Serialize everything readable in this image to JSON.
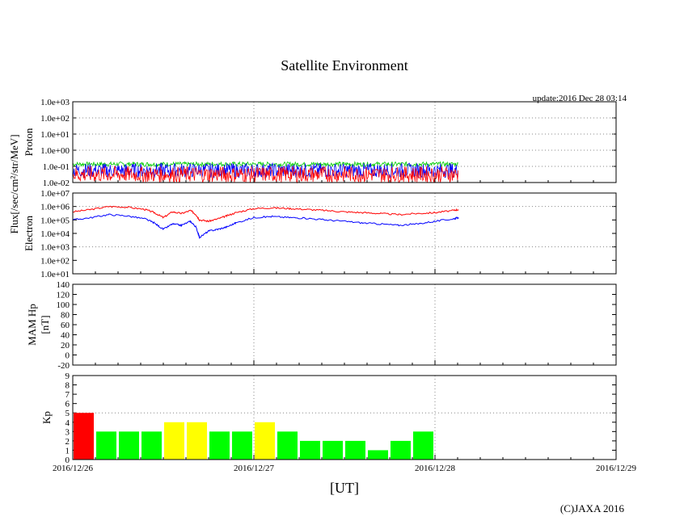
{
  "title": "Satellite Environment",
  "update_text": "update:2016 Dec 28 03:14",
  "flux_axis_label": "Flux[/sec/cm²/str/MeV]",
  "x_axis_label": "[UT]",
  "copyright": "(C)JAXA 2016",
  "colors": {
    "red": "#ff0000",
    "blue": "#0000ff",
    "green": "#00cc00",
    "kp_red": "#ff0000",
    "kp_yellow": "#ffff00",
    "kp_green": "#00ff00",
    "grid": "#888888"
  },
  "chart_data": [
    {
      "type": "line",
      "panel": "proton",
      "ylabel": "Proton",
      "yscale": "log",
      "ylim": [
        0.01,
        1000
      ],
      "ytick_labels": [
        "1.0e-02",
        "1.0e-01",
        "1.0e+00",
        "1.0e+01",
        "1.0e+02",
        "1.0e+03"
      ],
      "xlim": [
        0,
        3
      ],
      "x_tick_labels": [
        "2016/12/26",
        "2016/12/27",
        "2016/12/28",
        "2016/12/29"
      ],
      "data_end_day": 2.13,
      "series": [
        {
          "name": "green",
          "color": "green",
          "approx_level": 0.15,
          "noise_range": [
            0.1,
            0.19
          ]
        },
        {
          "name": "blue",
          "color": "blue",
          "approx_level": 0.1,
          "noise_range": [
            0.02,
            0.16
          ]
        },
        {
          "name": "red",
          "color": "red",
          "approx_level": 0.06,
          "noise_range": [
            0.01,
            0.1
          ]
        }
      ]
    },
    {
      "type": "line",
      "panel": "electron",
      "ylabel": "Electron",
      "yscale": "log",
      "ylim": [
        10,
        10000000
      ],
      "ytick_labels": [
        "1.0e+01",
        "1.0e+02",
        "1.0e+03",
        "1.0e+04",
        "1.0e+05",
        "1.0e+06",
        "1.0e+07"
      ],
      "x_days": [
        0,
        0.1,
        0.2,
        0.3,
        0.4,
        0.45,
        0.5,
        0.55,
        0.6,
        0.65,
        0.68,
        0.7,
        0.75,
        0.8,
        0.85,
        0.9,
        1.0,
        1.1,
        1.2,
        1.3,
        1.4,
        1.5,
        1.6,
        1.7,
        1.8,
        1.9,
        2.0,
        2.1,
        2.13
      ],
      "series": [
        {
          "name": "red",
          "color": "red",
          "values": [
            400000,
            600000,
            1000000,
            900000,
            600000,
            350000,
            150000,
            400000,
            300000,
            500000,
            250000,
            100000,
            80000,
            120000,
            200000,
            350000,
            700000,
            800000,
            700000,
            600000,
            500000,
            400000,
            350000,
            300000,
            250000,
            300000,
            350000,
            500000,
            600000
          ]
        },
        {
          "name": "blue",
          "color": "blue",
          "values": [
            100000,
            150000,
            250000,
            200000,
            120000,
            60000,
            20000,
            50000,
            40000,
            80000,
            30000,
            5000,
            15000,
            20000,
            30000,
            60000,
            150000,
            180000,
            150000,
            130000,
            100000,
            80000,
            60000,
            50000,
            40000,
            50000,
            80000,
            120000,
            150000
          ]
        }
      ]
    },
    {
      "type": "line",
      "panel": "mam_hp",
      "ylabel": "MAM Hp [nT]",
      "ylim": [
        -20,
        140
      ],
      "ytick_labels": [
        "-20",
        "0",
        "20",
        "40",
        "60",
        "80",
        "100",
        "120",
        "140"
      ],
      "series": []
    },
    {
      "type": "bar",
      "panel": "kp",
      "ylabel": "Kp",
      "ylim": [
        0,
        9
      ],
      "ytick_labels": [
        "0",
        "1",
        "2",
        "3",
        "4",
        "5",
        "6",
        "7",
        "8",
        "9"
      ],
      "threshold": 5,
      "bar_width_days": 0.125,
      "values": [
        5,
        3,
        3,
        3,
        4,
        4,
        3,
        3,
        4,
        3,
        2,
        2,
        2,
        1,
        2,
        3
      ],
      "bar_colors": [
        "kp_red",
        "kp_green",
        "kp_green",
        "kp_green",
        "kp_yellow",
        "kp_yellow",
        "kp_green",
        "kp_green",
        "kp_yellow",
        "kp_green",
        "kp_green",
        "kp_green",
        "kp_green",
        "kp_green",
        "kp_green",
        "kp_green"
      ]
    }
  ]
}
